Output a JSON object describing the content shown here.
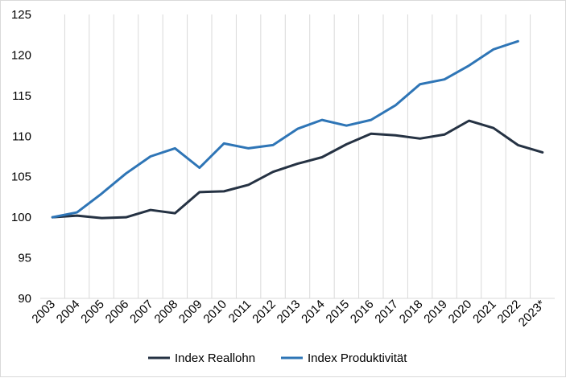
{
  "chart_data": {
    "type": "line",
    "title": "",
    "xlabel": "",
    "ylabel": "",
    "categories": [
      "2003",
      "2004",
      "2005",
      "2006",
      "2007",
      "2008",
      "2009",
      "2010",
      "2011",
      "2012",
      "2013",
      "2014",
      "2015",
      "2016",
      "2017",
      "2018",
      "2019",
      "2020",
      "2021",
      "2022",
      "2023*"
    ],
    "ylim": [
      90,
      125
    ],
    "yticks": [
      90,
      95,
      100,
      105,
      110,
      115,
      120,
      125
    ],
    "grid": "vertical",
    "legend": "bottom",
    "series": [
      {
        "name": "Index Reallohn",
        "color": "#253243",
        "values": [
          100,
          100.2,
          99.9,
          100,
          100.9,
          100.5,
          103.1,
          103.2,
          104,
          105.6,
          106.6,
          107.4,
          109,
          110.3,
          110.1,
          109.7,
          110.2,
          111.9,
          111,
          108.9,
          108
        ]
      },
      {
        "name": "Index Produktivität",
        "color": "#2e75b6",
        "values": [
          100,
          100.6,
          102.9,
          105.4,
          107.5,
          108.5,
          106.1,
          109.1,
          108.5,
          108.9,
          110.9,
          112,
          111.3,
          112,
          113.8,
          116.4,
          117,
          118.7,
          120.7,
          121.7,
          null
        ]
      }
    ]
  }
}
